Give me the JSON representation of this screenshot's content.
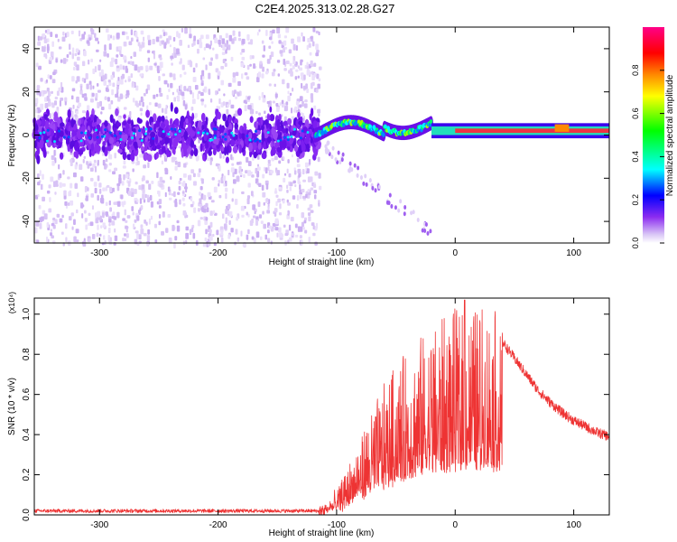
{
  "title": "C2E4.2025.313.02.28.G27",
  "chart_data": [
    {
      "type": "heatmap",
      "name": "spectrogram",
      "xlabel": "Height of straight line (km)",
      "ylabel": "Frequency (Hz)",
      "xlim": [
        -355,
        130
      ],
      "ylim": [
        -50,
        50
      ],
      "x_ticks": [
        -300,
        -200,
        -100,
        0,
        100
      ],
      "y_ticks": [
        -40,
        -20,
        0,
        20,
        40
      ],
      "features": [
        {
          "from_km": -355,
          "to_km": -115,
          "description": "broadband scattered noise, strong band near 0 Hz (about -10 to +10 Hz)"
        },
        {
          "from_km": -115,
          "to_km": -20,
          "description": "tone wandering between 0 and 8 Hz with weak tail drifting to about -45 Hz"
        },
        {
          "from_km": -20,
          "to_km": 130,
          "description": "steady tone near 2 Hz, amplitude near 0.9"
        }
      ],
      "colorbar": {
        "label": "Normalized spectral amplitude",
        "range": [
          0,
          1
        ],
        "ticks": [
          0.0,
          0.2,
          0.4,
          0.6,
          0.8
        ]
      }
    },
    {
      "type": "line",
      "name": "snr",
      "xlabel": "Height of straight line (km)",
      "ylabel": "SNR (10 * v/v)",
      "scale_label": "(x10⁴)",
      "xlim": [
        -355,
        130
      ],
      "ylim": [
        0,
        1.08
      ],
      "x_ticks": [
        -300,
        -200,
        -100,
        0,
        100
      ],
      "y_ticks": [
        0.0,
        0.2,
        0.4,
        0.6,
        0.8,
        1.0
      ],
      "color": "#ee3333",
      "envelope_points": [
        {
          "x": -355,
          "y": 0.02
        },
        {
          "x": -115,
          "y": 0.02
        },
        {
          "x": -100,
          "y": 0.1
        },
        {
          "x": -90,
          "y": 0.22
        },
        {
          "x": -80,
          "y": 0.35
        },
        {
          "x": -70,
          "y": 0.48
        },
        {
          "x": -60,
          "y": 0.58
        },
        {
          "x": -50,
          "y": 0.68
        },
        {
          "x": -40,
          "y": 0.74
        },
        {
          "x": -30,
          "y": 0.8
        },
        {
          "x": -20,
          "y": 0.86
        },
        {
          "x": -10,
          "y": 0.9
        },
        {
          "x": 0,
          "y": 0.93
        },
        {
          "x": 10,
          "y": 0.96
        },
        {
          "x": 20,
          "y": 0.95
        },
        {
          "x": 30,
          "y": 0.96
        },
        {
          "x": 40,
          "y": 0.86
        },
        {
          "x": 50,
          "y": 0.78
        },
        {
          "x": 60,
          "y": 0.7
        },
        {
          "x": 70,
          "y": 0.62
        },
        {
          "x": 80,
          "y": 0.56
        },
        {
          "x": 90,
          "y": 0.51
        },
        {
          "x": 100,
          "y": 0.47
        },
        {
          "x": 110,
          "y": 0.44
        },
        {
          "x": 120,
          "y": 0.41
        },
        {
          "x": 130,
          "y": 0.39
        }
      ],
      "peak": {
        "x": 8,
        "y": 1.07
      }
    }
  ]
}
